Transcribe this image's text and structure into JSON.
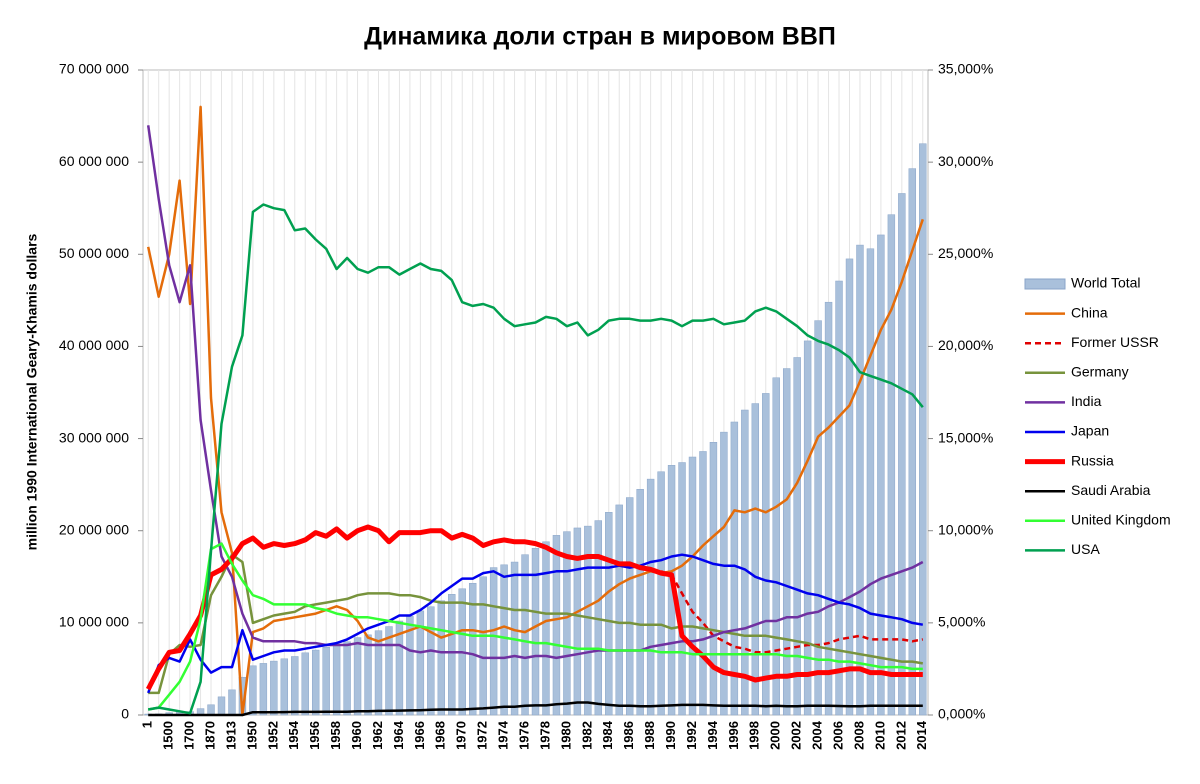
{
  "chart_data": {
    "type": "combo",
    "title": "Динамика доли стран в мировом ВВП",
    "y_label": "million 1990 International Geary-Khamis dollars",
    "categories": [
      "1",
      null,
      "1500",
      null,
      "1700",
      null,
      "1870",
      null,
      "1913",
      null,
      "1950",
      null,
      "1952",
      null,
      "1954",
      null,
      "1956",
      null,
      "1958",
      null,
      "1960",
      null,
      "1962",
      null,
      "1964",
      null,
      "1966",
      null,
      "1968",
      null,
      "1970",
      null,
      "1972",
      null,
      "1974",
      null,
      "1976",
      null,
      "1978",
      null,
      "1980",
      null,
      "1982",
      null,
      "1984",
      null,
      "1986",
      null,
      "1988",
      null,
      "1990",
      null,
      "1992",
      null,
      "1994",
      null,
      "1996",
      null,
      "1998",
      null,
      "2000",
      null,
      "2002",
      null,
      "2004",
      null,
      "2006",
      null,
      "2008",
      null,
      "2010",
      null,
      "2012",
      null,
      "2014"
    ],
    "ylim": [
      0,
      70000000
    ],
    "yticks": [
      0,
      {
        "value": 10000000,
        "label": "10 000 000"
      },
      {
        "value": 20000000,
        "label": "20 000 000"
      },
      {
        "value": 30000000,
        "label": "30 000 000"
      },
      {
        "value": 40000000,
        "label": "40 000 000"
      },
      {
        "value": 50000000,
        "label": "50 000 000"
      },
      {
        "value": 60000000,
        "label": "60 000 000"
      },
      {
        "value": 70000000,
        "label": "70 000 000"
      }
    ],
    "y2lim": [
      0,
      35
    ],
    "y2ticks": [
      {
        "value": 0,
        "label": "0,000%"
      },
      {
        "value": 5,
        "label": "5,000%"
      },
      {
        "value": 10,
        "label": "10,000%"
      },
      {
        "value": 15,
        "label": "15,000%"
      },
      {
        "value": 20,
        "label": "20,000%"
      },
      {
        "value": 25,
        "label": "25,000%"
      },
      {
        "value": 30,
        "label": "30,000%"
      },
      {
        "value": 35,
        "label": "35,000%"
      }
    ],
    "legend": "right",
    "series": [
      {
        "name": "World Total",
        "type": "bar",
        "axis": "y",
        "color": "#a9c0db",
        "values": [
          105000,
          121000,
          248000,
          331000,
          371000,
          694000,
          1110000,
          1970000,
          2730000,
          4100000,
          5340000,
          5600000,
          5850000,
          6100000,
          6350000,
          6750000,
          7050000,
          7350000,
          7550000,
          7950000,
          8400000,
          8700000,
          9150000,
          9600000,
          10200000,
          10700000,
          11300000,
          11750000,
          12400000,
          13100000,
          13700000,
          14300000,
          15000000,
          16000000,
          16300000,
          16600000,
          17400000,
          18100000,
          18800000,
          19500000,
          19900000,
          20300000,
          20500000,
          21100000,
          22000000,
          22800000,
          23600000,
          24500000,
          25600000,
          26400000,
          27100000,
          27400000,
          28000000,
          28600000,
          29600000,
          30700000,
          31800000,
          33100000,
          33800000,
          34900000,
          36600000,
          37600000,
          38800000,
          40600000,
          42800000,
          44800000,
          47100000,
          49500000,
          51000000,
          50600000,
          52100000,
          54300000,
          56600000,
          59300000,
          62000000
        ]
      },
      {
        "name": "China",
        "type": "line",
        "axis": "y2",
        "color": "#e46c0a",
        "values": [
          25.4,
          22.7,
          25.0,
          29.0,
          22.3,
          33.0,
          17.2,
          11.0,
          8.8,
          0,
          4.5,
          4.7,
          5.1,
          5.2,
          5.3,
          5.4,
          5.5,
          5.7,
          5.9,
          5.7,
          5.1,
          4.2,
          4.0,
          4.2,
          4.4,
          4.6,
          4.8,
          4.5,
          4.2,
          4.4,
          4.6,
          4.6,
          4.5,
          4.6,
          4.8,
          4.6,
          4.5,
          4.8,
          5.1,
          5.2,
          5.3,
          5.6,
          5.9,
          6.2,
          6.7,
          7.1,
          7.4,
          7.6,
          7.8,
          7.7,
          7.8,
          8.1,
          8.6,
          9.2,
          9.7,
          10.2,
          11.1,
          11.0,
          11.2,
          11.0,
          11.3,
          11.7,
          12.6,
          13.8,
          15.1,
          15.6,
          16.2,
          16.8,
          18.1,
          19.5,
          20.9,
          22.0,
          23.5,
          25.2,
          26.9
        ]
      },
      {
        "name": "Former USSR",
        "type": "line",
        "axis": "y2",
        "color": "#e00000",
        "dashed": true,
        "values": [
          null,
          null,
          null,
          null,
          null,
          null,
          null,
          null,
          null,
          null,
          null,
          null,
          null,
          null,
          null,
          null,
          null,
          null,
          null,
          null,
          null,
          null,
          null,
          null,
          null,
          null,
          null,
          null,
          null,
          null,
          null,
          null,
          null,
          null,
          null,
          null,
          null,
          null,
          null,
          null,
          null,
          null,
          null,
          null,
          null,
          null,
          null,
          null,
          null,
          7.8,
          7.6,
          6.6,
          5.6,
          5.0,
          4.3,
          4.0,
          3.7,
          3.6,
          3.4,
          3.4,
          3.5,
          3.6,
          3.7,
          3.8,
          3.8,
          3.9,
          4.1,
          4.2,
          4.3,
          4.1,
          4.1,
          4.1,
          4.1,
          4.0,
          4.1
        ]
      },
      {
        "name": "Germany",
        "type": "line",
        "axis": "y2",
        "color": "#77933c",
        "values": [
          1.2,
          1.2,
          3.3,
          3.8,
          3.7,
          3.8,
          6.5,
          7.5,
          8.7,
          8.3,
          5.0,
          5.2,
          5.4,
          5.5,
          5.6,
          5.9,
          6.0,
          6.1,
          6.2,
          6.3,
          6.5,
          6.6,
          6.6,
          6.6,
          6.5,
          6.5,
          6.4,
          6.2,
          6.1,
          6.1,
          6.1,
          6.0,
          6.0,
          5.9,
          5.8,
          5.7,
          5.7,
          5.6,
          5.5,
          5.5,
          5.5,
          5.4,
          5.3,
          5.2,
          5.1,
          5.0,
          5.0,
          4.9,
          4.9,
          4.9,
          4.7,
          4.8,
          4.8,
          4.7,
          4.6,
          4.5,
          4.4,
          4.3,
          4.3,
          4.3,
          4.2,
          4.1,
          4.0,
          3.9,
          3.7,
          3.6,
          3.5,
          3.4,
          3.3,
          3.2,
          3.1,
          3.0,
          2.9,
          2.9,
          2.8
        ]
      },
      {
        "name": "India",
        "type": "line",
        "axis": "y2",
        "color": "#7030a0",
        "values": [
          32.0,
          28.0,
          24.4,
          22.4,
          24.4,
          16.0,
          12.2,
          8.6,
          7.5,
          5.5,
          4.2,
          4.0,
          4.0,
          4.0,
          4.0,
          3.9,
          3.9,
          3.8,
          3.8,
          3.8,
          3.9,
          3.8,
          3.8,
          3.8,
          3.8,
          3.5,
          3.4,
          3.5,
          3.4,
          3.4,
          3.4,
          3.3,
          3.1,
          3.1,
          3.1,
          3.2,
          3.1,
          3.2,
          3.2,
          3.1,
          3.2,
          3.3,
          3.4,
          3.5,
          3.5,
          3.5,
          3.5,
          3.5,
          3.7,
          3.8,
          3.9,
          4.0,
          4.0,
          4.1,
          4.3,
          4.5,
          4.6,
          4.7,
          4.9,
          5.1,
          5.1,
          5.3,
          5.3,
          5.5,
          5.6,
          5.9,
          6.1,
          6.4,
          6.7,
          7.1,
          7.4,
          7.6,
          7.8,
          8.0,
          8.3
        ]
      },
      {
        "name": "Japan",
        "type": "line",
        "axis": "y2",
        "color": "#0000ee",
        "values": [
          1.2,
          2.7,
          3.1,
          2.9,
          4.1,
          3.0,
          2.3,
          2.6,
          2.6,
          4.6,
          3.0,
          3.2,
          3.4,
          3.5,
          3.5,
          3.6,
          3.7,
          3.8,
          3.9,
          4.1,
          4.4,
          4.7,
          4.9,
          5.1,
          5.4,
          5.4,
          5.7,
          6.1,
          6.6,
          7.0,
          7.4,
          7.4,
          7.7,
          7.8,
          7.5,
          7.6,
          7.6,
          7.6,
          7.7,
          7.8,
          7.8,
          7.9,
          8.0,
          8.0,
          8.0,
          8.1,
          8.0,
          8.1,
          8.3,
          8.4,
          8.6,
          8.7,
          8.6,
          8.4,
          8.2,
          8.1,
          8.1,
          7.9,
          7.5,
          7.3,
          7.2,
          7.0,
          6.8,
          6.6,
          6.5,
          6.3,
          6.1,
          6.0,
          5.8,
          5.5,
          5.4,
          5.3,
          5.2,
          5.0,
          4.9
        ]
      },
      {
        "name": "Russia",
        "type": "line",
        "axis": "y2",
        "color": "#ff0000",
        "line_width": 5,
        "values": [
          1.4,
          2.5,
          3.4,
          3.5,
          4.4,
          5.4,
          7.6,
          7.9,
          8.5,
          9.3,
          9.6,
          9.1,
          9.3,
          9.2,
          9.3,
          9.5,
          9.9,
          9.7,
          10.1,
          9.6,
          10.0,
          10.2,
          10.0,
          9.4,
          9.9,
          9.9,
          9.9,
          10.0,
          10.0,
          9.6,
          9.8,
          9.6,
          9.2,
          9.4,
          9.5,
          9.4,
          9.4,
          9.3,
          9.1,
          8.8,
          8.6,
          8.5,
          8.6,
          8.6,
          8.4,
          8.2,
          8.2,
          8.0,
          7.9,
          7.7,
          7.6,
          4.3,
          3.7,
          3.2,
          2.6,
          2.3,
          2.2,
          2.1,
          1.9,
          2.0,
          2.1,
          2.1,
          2.2,
          2.2,
          2.3,
          2.3,
          2.4,
          2.5,
          2.5,
          2.3,
          2.3,
          2.2,
          2.2,
          2.2,
          2.2
        ]
      },
      {
        "name": "Saudi Arabia",
        "type": "line",
        "axis": "y2",
        "color": "#000000",
        "values": [
          0,
          0,
          0,
          0,
          0,
          0,
          0,
          0,
          0,
          0,
          0.15,
          0.15,
          0.15,
          0.16,
          0.17,
          0.17,
          0.17,
          0.18,
          0.18,
          0.18,
          0.2,
          0.2,
          0.22,
          0.23,
          0.24,
          0.25,
          0.26,
          0.28,
          0.3,
          0.3,
          0.3,
          0.33,
          0.36,
          0.4,
          0.45,
          0.45,
          0.5,
          0.52,
          0.52,
          0.58,
          0.62,
          0.68,
          0.68,
          0.6,
          0.55,
          0.5,
          0.5,
          0.48,
          0.48,
          0.5,
          0.52,
          0.55,
          0.55,
          0.55,
          0.52,
          0.5,
          0.5,
          0.5,
          0.5,
          0.48,
          0.5,
          0.48,
          0.47,
          0.5,
          0.5,
          0.5,
          0.49,
          0.48,
          0.48,
          0.5,
          0.5,
          0.5,
          0.5,
          0.5,
          0.5
        ]
      },
      {
        "name": "United Kingdom",
        "type": "line",
        "axis": "y2",
        "color": "#33ff33",
        "values": [
          0.3,
          0.4,
          1.1,
          1.8,
          2.9,
          5.2,
          9.0,
          9.3,
          8.2,
          7.3,
          6.5,
          6.3,
          6.0,
          6.0,
          6.0,
          6.0,
          5.8,
          5.7,
          5.5,
          5.4,
          5.3,
          5.3,
          5.2,
          5.1,
          5.0,
          4.9,
          4.8,
          4.7,
          4.6,
          4.5,
          4.4,
          4.3,
          4.3,
          4.3,
          4.2,
          4.1,
          4.0,
          3.9,
          3.9,
          3.8,
          3.7,
          3.6,
          3.6,
          3.6,
          3.5,
          3.5,
          3.5,
          3.5,
          3.5,
          3.4,
          3.4,
          3.4,
          3.3,
          3.3,
          3.3,
          3.3,
          3.3,
          3.3,
          3.3,
          3.3,
          3.3,
          3.2,
          3.2,
          3.1,
          3.0,
          3.0,
          2.9,
          2.9,
          2.8,
          2.7,
          2.6,
          2.6,
          2.6,
          2.5,
          2.5
        ]
      },
      {
        "name": "USA",
        "type": "line",
        "axis": "y2",
        "color": "#00a050",
        "values": [
          0.3,
          0.4,
          0.3,
          0.2,
          0.1,
          1.8,
          8.9,
          15.8,
          18.9,
          20.6,
          27.3,
          27.7,
          27.5,
          27.4,
          26.3,
          26.4,
          25.8,
          25.3,
          24.2,
          24.8,
          24.2,
          24.0,
          24.3,
          24.3,
          23.9,
          24.2,
          24.5,
          24.2,
          24.1,
          23.6,
          22.4,
          22.2,
          22.3,
          22.1,
          21.5,
          21.1,
          21.2,
          21.3,
          21.6,
          21.5,
          21.1,
          21.3,
          20.6,
          20.9,
          21.4,
          21.5,
          21.5,
          21.4,
          21.4,
          21.5,
          21.4,
          21.1,
          21.4,
          21.4,
          21.5,
          21.2,
          21.3,
          21.4,
          21.9,
          22.1,
          21.9,
          21.5,
          21.1,
          20.6,
          20.3,
          20.1,
          19.8,
          19.4,
          18.6,
          18.4,
          18.2,
          18.0,
          17.7,
          17.4,
          16.7
        ]
      }
    ]
  }
}
